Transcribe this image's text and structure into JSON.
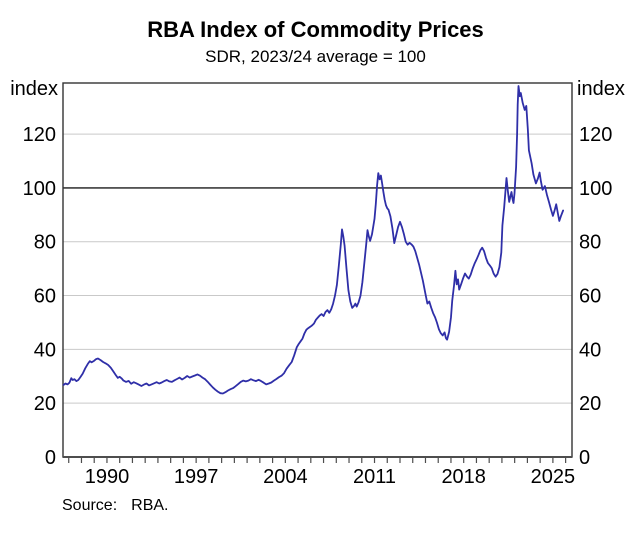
{
  "chart_data": {
    "type": "line",
    "title": "RBA Index of Commodity Prices",
    "subtitle": "SDR, 2023/24 average = 100",
    "y_axis_unit_label": "index",
    "source_label": "Source:",
    "source_value": "RBA.",
    "xlim": [
      1986.55,
      2026.5
    ],
    "ylim": [
      0,
      139
    ],
    "y_ticks": [
      0,
      20,
      40,
      60,
      80,
      100,
      120
    ],
    "x_labeled_ticks": [
      1990,
      1997,
      2004,
      2011,
      2018,
      2025
    ],
    "x_minor_ticks": {
      "start": 1987,
      "end": 2026,
      "step": 1
    },
    "reference_line_y": 100,
    "grid_on": true,
    "legend": "none",
    "colors": {
      "line": "#2f2fa8",
      "grid": "#c9c9c9",
      "reference_line": "#1a1a1a",
      "frame": "#333333",
      "axis": "#4d4d4d",
      "text": "#000000"
    },
    "series": [
      {
        "name": "Index of Commodity Prices (SDR, 2023/24 average = 100)",
        "points": [
          [
            1986.6,
            26.8
          ],
          [
            1986.75,
            27.3
          ],
          [
            1986.9,
            27.0
          ],
          [
            1987.05,
            27.6
          ],
          [
            1987.2,
            29.3
          ],
          [
            1987.3,
            28.6
          ],
          [
            1987.45,
            28.9
          ],
          [
            1987.6,
            28.2
          ],
          [
            1987.75,
            28.6
          ],
          [
            1987.9,
            29.6
          ],
          [
            1988.1,
            31.0
          ],
          [
            1988.3,
            33.0
          ],
          [
            1988.5,
            34.6
          ],
          [
            1988.65,
            35.6
          ],
          [
            1988.8,
            35.2
          ],
          [
            1989.0,
            35.8
          ],
          [
            1989.15,
            36.4
          ],
          [
            1989.3,
            36.6
          ],
          [
            1989.5,
            36.0
          ],
          [
            1989.7,
            35.3
          ],
          [
            1989.9,
            34.8
          ],
          [
            1990.1,
            34.2
          ],
          [
            1990.3,
            33.2
          ],
          [
            1990.5,
            31.8
          ],
          [
            1990.7,
            30.4
          ],
          [
            1990.85,
            29.4
          ],
          [
            1991.0,
            29.8
          ],
          [
            1991.15,
            29.2
          ],
          [
            1991.3,
            28.4
          ],
          [
            1991.5,
            27.9
          ],
          [
            1991.7,
            28.3
          ],
          [
            1991.9,
            27.2
          ],
          [
            1992.1,
            27.8
          ],
          [
            1992.3,
            27.4
          ],
          [
            1992.5,
            26.9
          ],
          [
            1992.7,
            26.4
          ],
          [
            1992.9,
            26.9
          ],
          [
            1993.1,
            27.3
          ],
          [
            1993.3,
            26.6
          ],
          [
            1993.5,
            27.0
          ],
          [
            1993.7,
            27.4
          ],
          [
            1993.9,
            27.8
          ],
          [
            1994.1,
            27.3
          ],
          [
            1994.3,
            27.7
          ],
          [
            1994.5,
            28.2
          ],
          [
            1994.7,
            28.6
          ],
          [
            1994.9,
            28.1
          ],
          [
            1995.1,
            27.9
          ],
          [
            1995.3,
            28.5
          ],
          [
            1995.5,
            29.0
          ],
          [
            1995.7,
            29.5
          ],
          [
            1995.9,
            28.8
          ],
          [
            1996.1,
            29.4
          ],
          [
            1996.3,
            30.1
          ],
          [
            1996.5,
            29.5
          ],
          [
            1996.7,
            29.9
          ],
          [
            1996.9,
            30.3
          ],
          [
            1997.1,
            30.7
          ],
          [
            1997.3,
            30.2
          ],
          [
            1997.5,
            29.5
          ],
          [
            1997.7,
            28.9
          ],
          [
            1997.9,
            28.0
          ],
          [
            1998.1,
            26.9
          ],
          [
            1998.3,
            25.9
          ],
          [
            1998.5,
            25.0
          ],
          [
            1998.7,
            24.3
          ],
          [
            1998.9,
            23.7
          ],
          [
            1999.1,
            23.6
          ],
          [
            1999.3,
            24.1
          ],
          [
            1999.5,
            24.7
          ],
          [
            1999.7,
            25.2
          ],
          [
            1999.9,
            25.6
          ],
          [
            2000.1,
            26.3
          ],
          [
            2000.3,
            27.1
          ],
          [
            2000.5,
            27.9
          ],
          [
            2000.7,
            28.4
          ],
          [
            2000.9,
            28.1
          ],
          [
            2001.1,
            28.4
          ],
          [
            2001.3,
            28.9
          ],
          [
            2001.5,
            28.5
          ],
          [
            2001.7,
            28.2
          ],
          [
            2001.9,
            28.7
          ],
          [
            2002.1,
            28.2
          ],
          [
            2002.3,
            27.6
          ],
          [
            2002.5,
            27.0
          ],
          [
            2002.7,
            27.3
          ],
          [
            2002.9,
            27.7
          ],
          [
            2003.1,
            28.4
          ],
          [
            2003.3,
            29.0
          ],
          [
            2003.5,
            29.7
          ],
          [
            2003.7,
            30.2
          ],
          [
            2003.9,
            31.2
          ],
          [
            2004.1,
            32.8
          ],
          [
            2004.3,
            34.1
          ],
          [
            2004.5,
            35.3
          ],
          [
            2004.7,
            37.8
          ],
          [
            2004.9,
            40.8
          ],
          [
            2005.05,
            42.0
          ],
          [
            2005.2,
            43.0
          ],
          [
            2005.35,
            44.0
          ],
          [
            2005.5,
            45.9
          ],
          [
            2005.65,
            47.3
          ],
          [
            2005.8,
            47.9
          ],
          [
            2005.95,
            48.4
          ],
          [
            2006.1,
            48.9
          ],
          [
            2006.25,
            49.6
          ],
          [
            2006.4,
            51.0
          ],
          [
            2006.55,
            51.8
          ],
          [
            2006.7,
            52.6
          ],
          [
            2006.85,
            53.1
          ],
          [
            2007.0,
            52.4
          ],
          [
            2007.15,
            53.9
          ],
          [
            2007.3,
            54.6
          ],
          [
            2007.45,
            53.6
          ],
          [
            2007.6,
            54.9
          ],
          [
            2007.75,
            57.0
          ],
          [
            2007.9,
            60.0
          ],
          [
            2008.05,
            64.0
          ],
          [
            2008.2,
            71.0
          ],
          [
            2008.35,
            79.0
          ],
          [
            2008.45,
            84.6
          ],
          [
            2008.55,
            82.0
          ],
          [
            2008.65,
            78.5
          ],
          [
            2008.8,
            70.0
          ],
          [
            2008.95,
            62.0
          ],
          [
            2009.1,
            57.8
          ],
          [
            2009.25,
            55.4
          ],
          [
            2009.4,
            56.2
          ],
          [
            2009.5,
            57.0
          ],
          [
            2009.6,
            55.9
          ],
          [
            2009.75,
            57.5
          ],
          [
            2009.9,
            60.0
          ],
          [
            2010.05,
            65.0
          ],
          [
            2010.2,
            72.0
          ],
          [
            2010.35,
            79.0
          ],
          [
            2010.45,
            84.3
          ],
          [
            2010.55,
            82.0
          ],
          [
            2010.65,
            80.3
          ],
          [
            2010.8,
            82.8
          ],
          [
            2010.9,
            85.5
          ],
          [
            2011.0,
            88.5
          ],
          [
            2011.1,
            94.0
          ],
          [
            2011.2,
            101.0
          ],
          [
            2011.3,
            105.5
          ],
          [
            2011.4,
            103.2
          ],
          [
            2011.5,
            104.6
          ],
          [
            2011.6,
            101.5
          ],
          [
            2011.7,
            98.5
          ],
          [
            2011.8,
            95.6
          ],
          [
            2011.9,
            93.5
          ],
          [
            2012.0,
            92.4
          ],
          [
            2012.1,
            91.9
          ],
          [
            2012.25,
            89.5
          ],
          [
            2012.4,
            85.0
          ],
          [
            2012.55,
            79.5
          ],
          [
            2012.7,
            82.5
          ],
          [
            2012.85,
            85.5
          ],
          [
            2013.0,
            87.4
          ],
          [
            2013.15,
            85.5
          ],
          [
            2013.3,
            83.0
          ],
          [
            2013.45,
            80.0
          ],
          [
            2013.6,
            78.9
          ],
          [
            2013.75,
            79.6
          ],
          [
            2013.9,
            79.0
          ],
          [
            2014.05,
            78.2
          ],
          [
            2014.2,
            76.5
          ],
          [
            2014.35,
            74.0
          ],
          [
            2014.5,
            71.5
          ],
          [
            2014.65,
            68.5
          ],
          [
            2014.8,
            65.5
          ],
          [
            2015.0,
            60.5
          ],
          [
            2015.15,
            57.0
          ],
          [
            2015.3,
            57.8
          ],
          [
            2015.45,
            55.5
          ],
          [
            2015.6,
            53.5
          ],
          [
            2015.75,
            52.0
          ],
          [
            2015.9,
            50.0
          ],
          [
            2016.05,
            47.5
          ],
          [
            2016.2,
            46.0
          ],
          [
            2016.35,
            45.2
          ],
          [
            2016.5,
            46.3
          ],
          [
            2016.6,
            44.2
          ],
          [
            2016.7,
            43.6
          ],
          [
            2016.85,
            46.5
          ],
          [
            2017.0,
            52.0
          ],
          [
            2017.1,
            58.0
          ],
          [
            2017.25,
            64.0
          ],
          [
            2017.35,
            69.2
          ],
          [
            2017.45,
            64.2
          ],
          [
            2017.55,
            66.0
          ],
          [
            2017.65,
            62.2
          ],
          [
            2017.8,
            64.3
          ],
          [
            2017.95,
            66.4
          ],
          [
            2018.1,
            68.2
          ],
          [
            2018.25,
            67.1
          ],
          [
            2018.4,
            66.3
          ],
          [
            2018.55,
            67.8
          ],
          [
            2018.7,
            70.0
          ],
          [
            2018.85,
            71.8
          ],
          [
            2019.0,
            73.3
          ],
          [
            2019.15,
            75.0
          ],
          [
            2019.3,
            76.8
          ],
          [
            2019.45,
            77.8
          ],
          [
            2019.6,
            76.5
          ],
          [
            2019.75,
            74.0
          ],
          [
            2019.9,
            72.1
          ],
          [
            2020.05,
            71.2
          ],
          [
            2020.2,
            70.2
          ],
          [
            2020.35,
            68.2
          ],
          [
            2020.5,
            67.0
          ],
          [
            2020.65,
            68.0
          ],
          [
            2020.8,
            70.5
          ],
          [
            2020.95,
            76.0
          ],
          [
            2021.04,
            86.0
          ],
          [
            2021.18,
            92.9
          ],
          [
            2021.28,
            99.0
          ],
          [
            2021.36,
            103.7
          ],
          [
            2021.46,
            99.0
          ],
          [
            2021.57,
            94.8
          ],
          [
            2021.67,
            97.0
          ],
          [
            2021.75,
            98.5
          ],
          [
            2021.83,
            96.0
          ],
          [
            2021.91,
            94.4
          ],
          [
            2021.99,
            98.0
          ],
          [
            2022.11,
            107.8
          ],
          [
            2022.19,
            120.0
          ],
          [
            2022.24,
            131.0
          ],
          [
            2022.3,
            137.9
          ],
          [
            2022.4,
            134.1
          ],
          [
            2022.48,
            135.3
          ],
          [
            2022.63,
            131.6
          ],
          [
            2022.79,
            129.0
          ],
          [
            2022.91,
            130.5
          ],
          [
            2023.03,
            122.0
          ],
          [
            2023.12,
            114.0
          ],
          [
            2023.33,
            109.2
          ],
          [
            2023.47,
            105.0
          ],
          [
            2023.67,
            101.7
          ],
          [
            2023.82,
            103.5
          ],
          [
            2023.96,
            105.7
          ],
          [
            2024.06,
            102.5
          ],
          [
            2024.19,
            99.3
          ],
          [
            2024.37,
            100.7
          ],
          [
            2024.53,
            97.5
          ],
          [
            2024.69,
            94.9
          ],
          [
            2024.85,
            92.0
          ],
          [
            2025.0,
            89.6
          ],
          [
            2025.13,
            91.5
          ],
          [
            2025.26,
            93.9
          ],
          [
            2025.39,
            90.5
          ],
          [
            2025.5,
            87.7
          ],
          [
            2025.63,
            89.5
          ],
          [
            2025.8,
            91.6
          ]
        ]
      }
    ]
  }
}
